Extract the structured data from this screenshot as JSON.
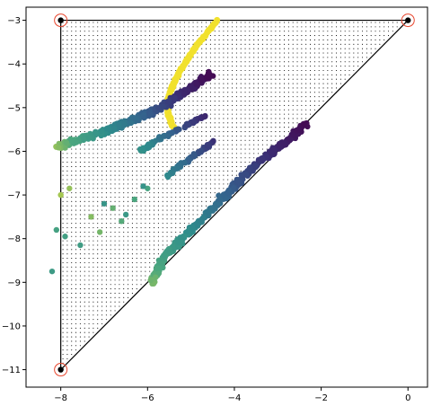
{
  "chart_data": {
    "type": "scatter",
    "title": "",
    "xlabel": "",
    "ylabel": "",
    "xlim": [
      -8.8,
      0.45
    ],
    "ylim": [
      -11.4,
      -2.7
    ],
    "grid": false,
    "x_ticks": [
      -8,
      -6,
      -4,
      -2,
      0
    ],
    "x_tick_labels": [
      "−8",
      "−6",
      "−4",
      "−2",
      "0"
    ],
    "y_ticks": [
      -3,
      -4,
      -5,
      -6,
      -7,
      -8,
      -9,
      -10,
      -11
    ],
    "y_tick_labels": [
      "−3",
      "−4",
      "−5",
      "−6",
      "−7",
      "−8",
      "−9",
      "−10",
      "−11"
    ],
    "triangle": [
      [
        -8,
        -3
      ],
      [
        0,
        -3
      ],
      [
        -8,
        -11
      ]
    ],
    "corner_markers": [
      [
        -8,
        -3
      ],
      [
        0,
        -3
      ],
      [
        -8,
        -11
      ]
    ],
    "grid_fill": {
      "spacing": 0.1
    },
    "colors": {
      "triangle_edge": "#000000",
      "corner_ring": "#e8472f",
      "grid_dot": "#000000",
      "yellow_arc": "#f1e12d",
      "colormap": [
        "#fde725",
        "#4ca77f",
        "#2e8c8c",
        "#35618d",
        "#3b2f75",
        "#440b54"
      ]
    },
    "series": [
      {
        "shape": "yellow arc",
        "color_t": 0,
        "points": [
          [
            -4.4,
            -3.0
          ],
          [
            -4.6,
            -3.25
          ],
          [
            -4.85,
            -3.55
          ],
          [
            -5.05,
            -3.85
          ],
          [
            -5.25,
            -4.15
          ],
          [
            -5.4,
            -4.45
          ],
          [
            -5.5,
            -4.7
          ],
          [
            -5.55,
            -4.95
          ],
          [
            -5.52,
            -5.15
          ],
          [
            -5.45,
            -5.35
          ],
          [
            -5.35,
            -5.55
          ]
        ]
      },
      {
        "shape": "upper band",
        "t_start": 0.12,
        "t_end": 1.0,
        "points": [
          [
            -8.1,
            -5.9
          ],
          [
            -7.6,
            -5.75
          ],
          [
            -7.0,
            -5.55
          ],
          [
            -6.5,
            -5.35
          ],
          [
            -6.0,
            -5.15
          ],
          [
            -5.6,
            -4.95
          ],
          [
            -5.25,
            -4.7
          ],
          [
            -4.85,
            -4.45
          ],
          [
            -4.55,
            -4.25
          ]
        ]
      },
      {
        "shape": "diagonal band",
        "t_start": 0.15,
        "t_end": 1.0,
        "points": [
          [
            -5.9,
            -9.0
          ],
          [
            -5.6,
            -8.4
          ],
          [
            -5.2,
            -8.0
          ],
          [
            -4.8,
            -7.6
          ],
          [
            -4.3,
            -7.1
          ],
          [
            -3.9,
            -6.7
          ],
          [
            -3.5,
            -6.3
          ],
          [
            -3.1,
            -6.0
          ],
          [
            -2.7,
            -5.7
          ],
          [
            -2.35,
            -5.35
          ]
        ]
      },
      {
        "shape": "middle streak",
        "t_start": 0.35,
        "t_end": 0.85,
        "points": [
          [
            -6.2,
            -6.0
          ],
          [
            -5.8,
            -5.75
          ],
          [
            -5.4,
            -5.55
          ],
          [
            -5.0,
            -5.35
          ],
          [
            -4.65,
            -5.2
          ]
        ]
      },
      {
        "shape": "middle lower streak",
        "t_start": 0.4,
        "t_end": 0.8,
        "points": [
          [
            -5.6,
            -6.6
          ],
          [
            -5.3,
            -6.35
          ],
          [
            -5.0,
            -6.15
          ],
          [
            -4.7,
            -5.95
          ],
          [
            -4.45,
            -5.75
          ]
        ]
      },
      {
        "shape": "left scatter",
        "t_start": 0.1,
        "t_end": 0.35,
        "points": [
          [
            -8.0,
            -7.0
          ],
          [
            -7.8,
            -6.85
          ],
          [
            -7.3,
            -7.5
          ],
          [
            -7.1,
            -7.85
          ],
          [
            -6.8,
            -7.3
          ],
          [
            -6.6,
            -7.6
          ],
          [
            -6.3,
            -7.1
          ],
          [
            -6.0,
            -6.85
          ],
          [
            -8.1,
            -7.8
          ],
          [
            -7.9,
            -7.95
          ],
          [
            -7.55,
            -8.15
          ],
          [
            -8.2,
            -8.75
          ],
          [
            -6.5,
            -7.45
          ],
          [
            -7.0,
            -7.2
          ],
          [
            -6.1,
            -6.8
          ]
        ]
      }
    ]
  }
}
